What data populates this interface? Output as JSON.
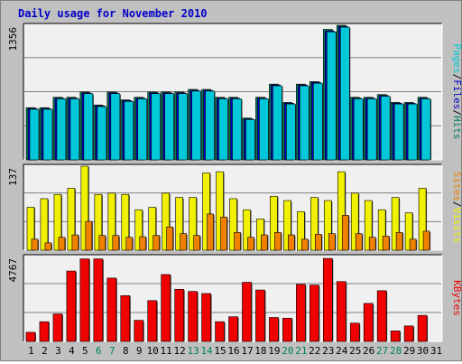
{
  "title": "Daily usage for November 2010",
  "colors": {
    "background": "#c0c0c0",
    "plot_bg": "#f0f0f0",
    "grid": "#808080",
    "hits": "#00805c",
    "files": "#0000c8",
    "pages": "#00c8d8",
    "visits": "#f0f000",
    "sites": "#f08000",
    "kbytes": "#f00000",
    "weekend_label": "#00805c",
    "day_label": "#000000"
  },
  "chart_data": [
    {
      "type": "bar",
      "panel": "hits-files-pages",
      "ymax_label": "1356",
      "ylim": [
        0,
        1356
      ],
      "legend": {
        "parts": [
          "Pages",
          "Files",
          "Hits"
        ],
        "separator": "/"
      },
      "series": [
        {
          "name": "Hits",
          "values": [
            526,
            526,
            631,
            631,
            684,
            553,
            684,
            605,
            631,
            684,
            684,
            684,
            710,
            710,
            631,
            631,
            421,
            631,
            763,
            579,
            763,
            789,
            1315,
            1356,
            631,
            631,
            658,
            579,
            579,
            631
          ]
        },
        {
          "name": "Files",
          "values": [
            518,
            518,
            622,
            622,
            675,
            545,
            675,
            597,
            622,
            675,
            675,
            675,
            701,
            701,
            622,
            622,
            413,
            622,
            755,
            571,
            755,
            781,
            1300,
            1345,
            622,
            622,
            649,
            571,
            571,
            622
          ]
        },
        {
          "name": "Pages",
          "values": [
            510,
            510,
            615,
            615,
            667,
            537,
            667,
            589,
            615,
            667,
            667,
            667,
            693,
            693,
            615,
            615,
            406,
            615,
            746,
            563,
            746,
            772,
            1290,
            1337,
            615,
            615,
            641,
            563,
            563,
            615
          ]
        }
      ]
    },
    {
      "type": "bar",
      "panel": "visits-sites",
      "ymax_label": "137",
      "ylim": [
        0,
        137
      ],
      "legend": {
        "parts": [
          "Sites",
          "Visits"
        ],
        "separator": "/"
      },
      "series": [
        {
          "name": "Visits",
          "values": [
            70,
            84,
            91,
            101,
            137,
            91,
            93,
            91,
            66,
            70,
            93,
            86,
            86,
            126,
            128,
            84,
            66,
            51,
            88,
            81,
            63,
            86,
            81,
            128,
            93,
            81,
            66,
            86,
            61,
            101
          ]
        },
        {
          "name": "Sites",
          "values": [
            18,
            12,
            21,
            25,
            47,
            24,
            24,
            21,
            22,
            24,
            38,
            27,
            24,
            59,
            54,
            29,
            21,
            25,
            29,
            25,
            18,
            26,
            27,
            57,
            27,
            21,
            23,
            29,
            18,
            31
          ]
        }
      ]
    },
    {
      "type": "bar",
      "panel": "kbytes",
      "ymax_label": "4767",
      "ylim": [
        0,
        4767
      ],
      "legend": {
        "parts": [
          "KBytes"
        ],
        "separator": ""
      },
      "series": [
        {
          "name": "KBytes",
          "values": [
            514,
            1107,
            1542,
            3953,
            4635,
            4635,
            3558,
            2570,
            1186,
            2293,
            3756,
            2926,
            2807,
            2689,
            1107,
            1384,
            3321,
            2887,
            1344,
            1305,
            3202,
            3163,
            4661,
            3360,
            1028,
            2135,
            2847,
            593,
            870,
            1463
          ]
        }
      ]
    }
  ],
  "x_days": [
    "1",
    "2",
    "3",
    "4",
    "5",
    "6",
    "7",
    "8",
    "9",
    "10",
    "11",
    "12",
    "13",
    "14",
    "15",
    "16",
    "17",
    "18",
    "19",
    "20",
    "21",
    "22",
    "23",
    "24",
    "25",
    "26",
    "27",
    "28",
    "29",
    "30",
    "31"
  ],
  "weekend_days": [
    "6",
    "7",
    "13",
    "14",
    "20",
    "21",
    "27",
    "28"
  ]
}
